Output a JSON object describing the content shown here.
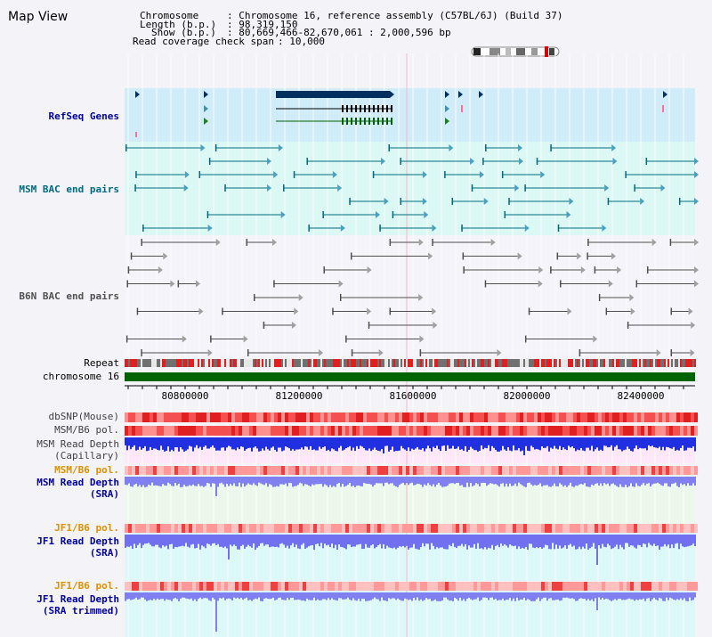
{
  "title": "Map View",
  "header": {
    "chromosome_key": "Chromosome",
    "chromosome_value": ": Chromosome 16, reference assembly (C57BL/6J) (Build 37)",
    "length_key": "Length (b.p.)",
    "length_value": ": 98,319,150",
    "show_key": "Show (b.p.)",
    "show_value": ": 80,669,466-82,670,061 : 2,000,596 bp",
    "coverage_key": "Read coverage check span",
    "coverage_value": ": 10,000"
  },
  "tracks": {
    "refseq": "RefSeq Genes",
    "msm_bac": "MSM BAC end pairs",
    "b6n_bac": "B6N BAC end pairs",
    "repeat": "Repeat",
    "chromosome": "chromosome 16",
    "dbsnp": "dbSNP(Mouse)",
    "msm_b6_pol": "MSM/B6 pol.",
    "msm_depth_cap_1": "MSM Read Depth",
    "msm_depth_cap_2": "(Capillary)",
    "msm_b6_pol_2": "MSM/B6 pol.",
    "msm_depth_sra_1": "MSM Read Depth",
    "msm_depth_sra_2": "(SRA)",
    "jf1_b6_pol": "JF1/B6 pol.",
    "jf1_depth_sra_1": "JF1 Read Depth",
    "jf1_depth_sra_2": "(SRA)",
    "jf1_b6_pol_2": "JF1/B6 pol.",
    "jf1_depth_trim_1": "JF1 Read Depth",
    "jf1_depth_trim_2": "(SRA trimmed)"
  },
  "axis": {
    "ticks": [
      "80800000",
      "81200000",
      "81600000",
      "82000000",
      "82400000"
    ]
  },
  "colors": {
    "refseq_bg": "#d0ecf8",
    "msm_bac_bg": "#dcf8f4",
    "b6n_bg": "#f4f4fa",
    "msm_label": "#006b80",
    "blue_label": "#0000a0",
    "orange_label": "#e09000",
    "chromosome_bar": "#006400"
  }
}
